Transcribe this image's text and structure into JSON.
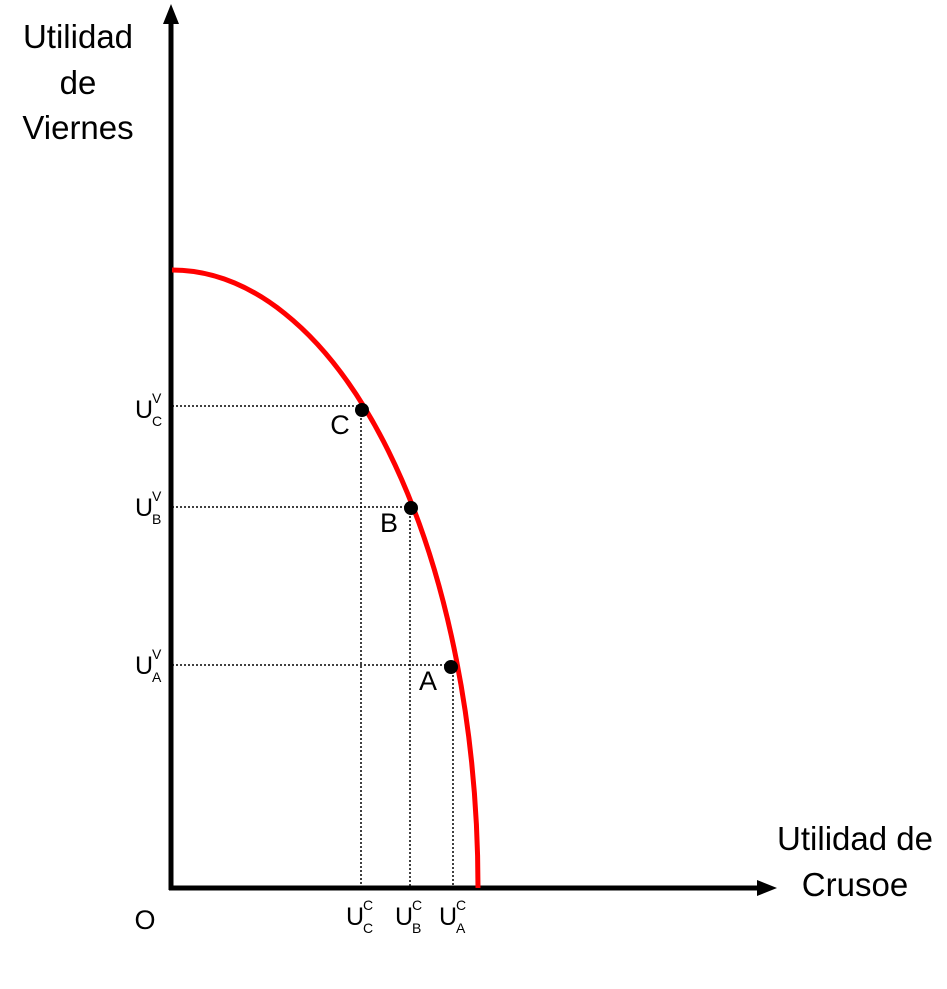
{
  "axes": {
    "y_label": [
      "Utilidad",
      "de",
      "Viernes"
    ],
    "x_label": [
      "Utilidad de",
      "Crusoe"
    ],
    "origin": "O"
  },
  "points": [
    {
      "label": "C",
      "tick_y": {
        "base": "U",
        "sup": "V",
        "sub": "C"
      },
      "tick_x": {
        "base": "U",
        "sup": "C",
        "sub": "C"
      }
    },
    {
      "label": "B",
      "tick_y": {
        "base": "U",
        "sup": "V",
        "sub": "B"
      },
      "tick_x": {
        "base": "U",
        "sup": "C",
        "sub": "B"
      }
    },
    {
      "label": "A",
      "tick_y": {
        "base": "U",
        "sup": "V",
        "sub": "A"
      },
      "tick_x": {
        "base": "U",
        "sup": "C",
        "sub": "A"
      }
    }
  ]
}
